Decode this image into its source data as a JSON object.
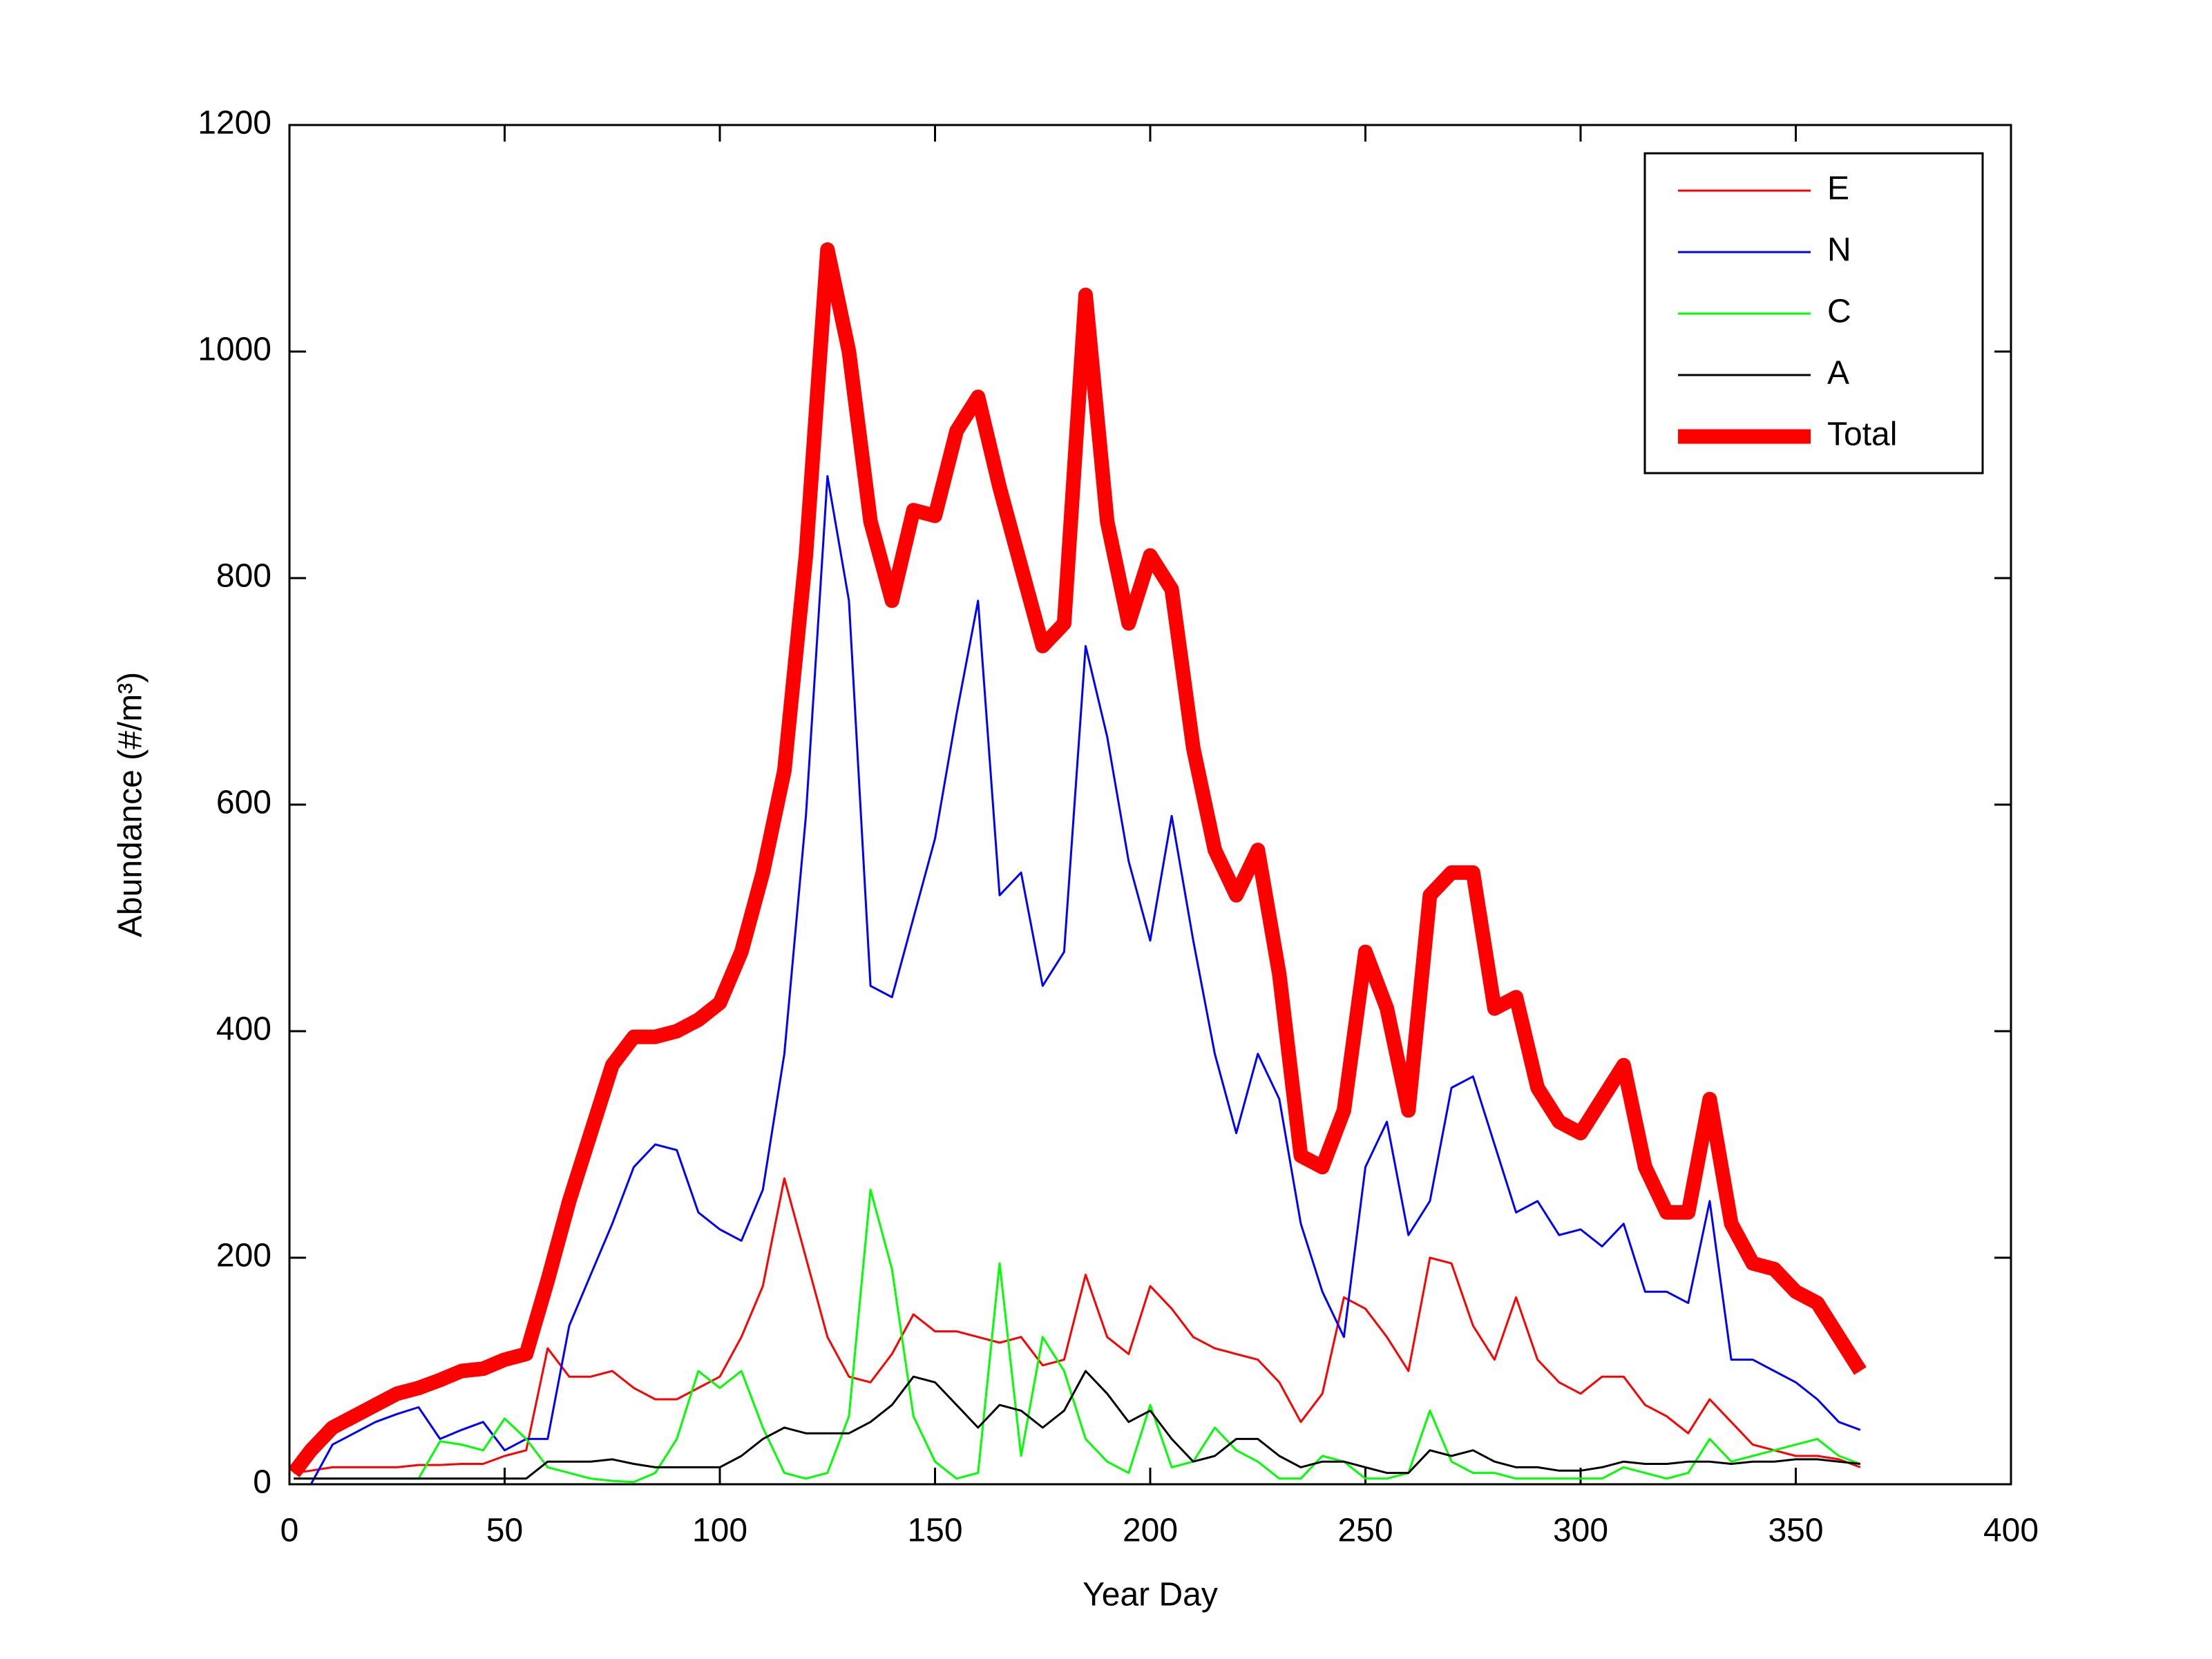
{
  "chart_data": {
    "type": "line",
    "xlabel": "Year Day",
    "ylabel": "Abundance (#/m³)",
    "xlim": [
      0,
      400
    ],
    "ylim": [
      0,
      1200
    ],
    "xticks": [
      0,
      50,
      100,
      150,
      200,
      250,
      300,
      350,
      400
    ],
    "yticks": [
      0,
      200,
      400,
      600,
      800,
      1000,
      1200
    ],
    "grid": false,
    "legend": "upper right",
    "x": [
      1,
      5,
      10,
      15,
      20,
      25,
      30,
      35,
      40,
      45,
      50,
      55,
      60,
      65,
      70,
      75,
      80,
      85,
      90,
      95,
      100,
      105,
      110,
      115,
      120,
      125,
      130,
      135,
      140,
      145,
      150,
      155,
      160,
      165,
      170,
      175,
      180,
      185,
      190,
      195,
      200,
      205,
      210,
      215,
      220,
      225,
      230,
      235,
      240,
      245,
      250,
      255,
      260,
      265,
      270,
      275,
      280,
      285,
      290,
      295,
      300,
      305,
      310,
      315,
      320,
      325,
      330,
      335,
      340,
      345,
      350,
      355,
      360,
      365
    ],
    "series": [
      {
        "name": "E",
        "color": "#ff0000",
        "width": 1,
        "values": [
          10,
          12,
          15,
          15,
          15,
          15,
          17,
          17,
          18,
          18,
          25,
          30,
          120,
          95,
          95,
          100,
          85,
          75,
          75,
          85,
          95,
          130,
          175,
          270,
          200,
          130,
          95,
          90,
          115,
          150,
          135,
          135,
          130,
          125,
          130,
          105,
          110,
          185,
          130,
          115,
          175,
          155,
          130,
          120,
          115,
          110,
          90,
          55,
          80,
          165,
          155,
          130,
          100,
          200,
          195,
          140,
          110,
          165,
          110,
          90,
          80,
          95,
          95,
          70,
          60,
          45,
          75,
          55,
          35,
          30,
          25,
          25,
          22,
          15
        ]
      },
      {
        "name": "N",
        "color": "#0000ff",
        "width": 1,
        "values": [
          0,
          0,
          35,
          45,
          55,
          62,
          68,
          40,
          48,
          55,
          30,
          40,
          40,
          140,
          185,
          230,
          280,
          300,
          295,
          240,
          225,
          215,
          260,
          380,
          590,
          890,
          780,
          440,
          430,
          500,
          570,
          680,
          780,
          520,
          540,
          440,
          470,
          740,
          660,
          550,
          480,
          590,
          480,
          380,
          310,
          380,
          340,
          230,
          170,
          130,
          280,
          320,
          220,
          250,
          350,
          360,
          300,
          240,
          250,
          220,
          225,
          210,
          230,
          170,
          170,
          160,
          250,
          110,
          110,
          100,
          90,
          75,
          55,
          48
        ]
      },
      {
        "name": "C",
        "color": "#00ff00",
        "width": 1,
        "values": [
          5,
          5,
          5,
          5,
          5,
          5,
          5,
          38,
          35,
          30,
          58,
          40,
          15,
          10,
          5,
          3,
          2,
          10,
          40,
          100,
          85,
          100,
          50,
          10,
          5,
          10,
          60,
          260,
          190,
          60,
          20,
          5,
          10,
          195,
          25,
          130,
          100,
          40,
          20,
          10,
          70,
          15,
          20,
          50,
          30,
          20,
          5,
          5,
          25,
          20,
          5,
          5,
          10,
          65,
          20,
          10,
          10,
          5,
          5,
          5,
          5,
          5,
          15,
          10,
          5,
          10,
          40,
          20,
          25,
          30,
          35,
          40,
          25,
          18
        ]
      },
      {
        "name": "A",
        "color": "#000000",
        "width": 1,
        "values": [
          5,
          5,
          5,
          5,
          5,
          5,
          5,
          5,
          5,
          5,
          5,
          5,
          20,
          20,
          20,
          22,
          18,
          15,
          15,
          15,
          15,
          25,
          40,
          50,
          45,
          45,
          45,
          55,
          70,
          95,
          90,
          70,
          50,
          70,
          65,
          50,
          65,
          100,
          80,
          55,
          65,
          40,
          20,
          25,
          40,
          40,
          25,
          15,
          20,
          20,
          15,
          10,
          10,
          30,
          25,
          30,
          20,
          15,
          15,
          12,
          12,
          15,
          20,
          18,
          18,
          20,
          20,
          18,
          20,
          20,
          22,
          22,
          20,
          18
        ]
      },
      {
        "name": "Total",
        "color": "#ff0000",
        "width": 7,
        "values": [
          10,
          30,
          50,
          60,
          70,
          80,
          85,
          92,
          100,
          102,
          110,
          115,
          180,
          250,
          310,
          370,
          395,
          395,
          400,
          410,
          425,
          470,
          540,
          630,
          820,
          1090,
          1000,
          850,
          780,
          860,
          855,
          930,
          960,
          880,
          810,
          740,
          760,
          1050,
          850,
          760,
          820,
          790,
          650,
          560,
          520,
          560,
          450,
          290,
          280,
          330,
          470,
          420,
          330,
          520,
          540,
          540,
          420,
          430,
          350,
          320,
          310,
          340,
          370,
          280,
          240,
          240,
          340,
          230,
          195,
          190,
          170,
          160,
          130,
          100
        ]
      }
    ]
  }
}
